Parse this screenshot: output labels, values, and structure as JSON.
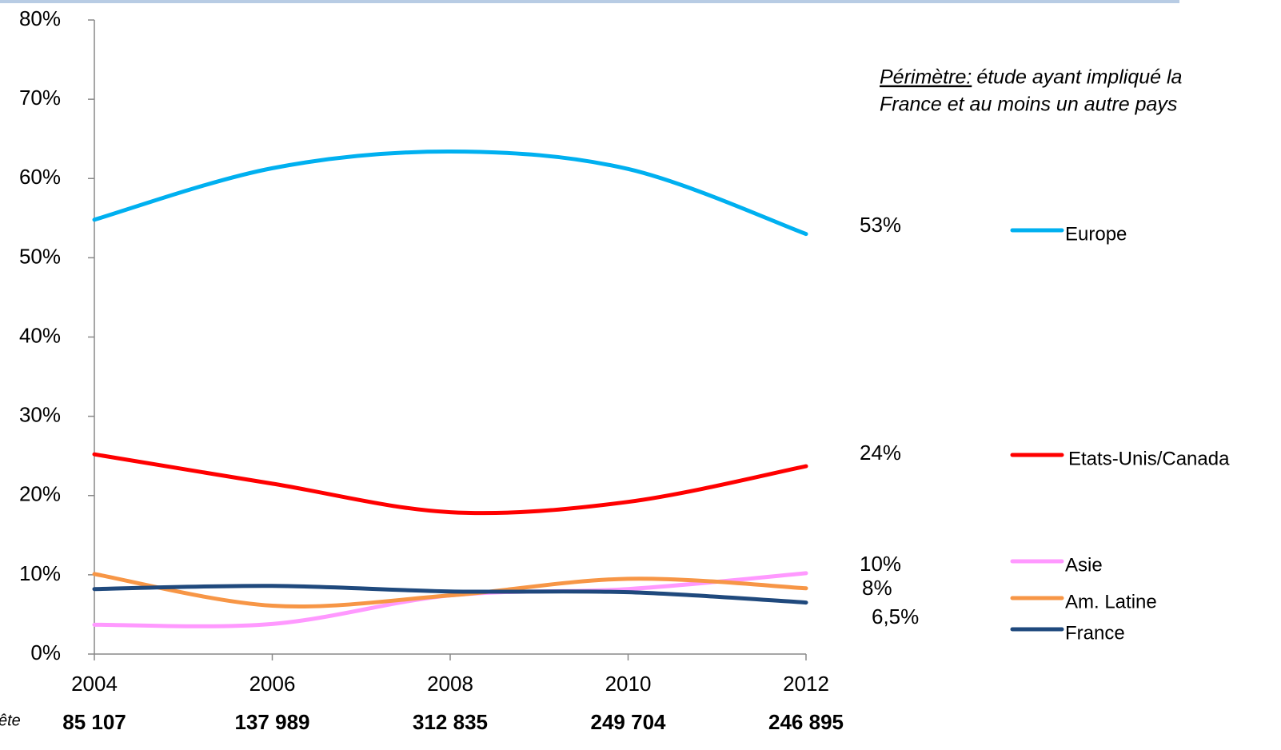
{
  "chart_data": {
    "type": "line",
    "x": [
      2004,
      2006,
      2008,
      2010,
      2012
    ],
    "xlim": [
      2004,
      2012
    ],
    "xticks": [
      2004,
      2006,
      2008,
      2010,
      2012
    ],
    "ylim": [
      0,
      80
    ],
    "yticks": [
      {
        "value": 0,
        "label": "0%"
      },
      {
        "value": 10,
        "label": "10%"
      },
      {
        "value": 20,
        "label": "20%"
      },
      {
        "value": 30,
        "label": "30%"
      },
      {
        "value": 40,
        "label": "40%"
      },
      {
        "value": 50,
        "label": "50%"
      },
      {
        "value": 60,
        "label": "60%"
      },
      {
        "value": 70,
        "label": "70%"
      },
      {
        "value": 80,
        "label": "80%"
      }
    ],
    "smooth": true,
    "series": [
      {
        "name": "Europe",
        "color": "#00b0f0",
        "label_color": "#00b0f0",
        "values": [
          54.8,
          61.3,
          63.4,
          61.2,
          53
        ],
        "value_labels": [
          null,
          null,
          null,
          null,
          "53%"
        ]
      },
      {
        "name": "Etats-Unis/Canada",
        "color": "#ff0000",
        "label_color": "#ff0000",
        "values": [
          25.2,
          21.5,
          17.9,
          19.2,
          23.7
        ],
        "value_labels": [
          null,
          null,
          null,
          null,
          "24%"
        ]
      },
      {
        "name": "Asie",
        "color": "#ff99ff",
        "label_color": "#ff99ff",
        "values": [
          3.7,
          3.8,
          7.4,
          8.2,
          10.2
        ],
        "value_labels": [
          null,
          null,
          null,
          null,
          "10%"
        ]
      },
      {
        "name": "Am. Latine",
        "color": "#f79646",
        "label_color": "#f08080",
        "values": [
          10.1,
          6.1,
          7.4,
          9.5,
          8.3
        ],
        "value_labels": [
          null,
          null,
          null,
          null,
          "8%"
        ]
      },
      {
        "name": "France",
        "color": "#1f497d",
        "label_color": "#333399",
        "values": [
          8.2,
          8.6,
          7.9,
          7.8,
          6.5
        ],
        "value_labels": [
          null,
          null,
          null,
          null,
          "6,5%"
        ]
      }
    ],
    "annotation_lead": "Périmètre:",
    "annotation_lines": [
      "étude ayant impliqué la",
      "France et au moins un autre pays"
    ],
    "footer_label": "ête",
    "footer_values": [
      "85 107",
      "137 989",
      "312 835",
      "249 704",
      "246 895"
    ]
  }
}
